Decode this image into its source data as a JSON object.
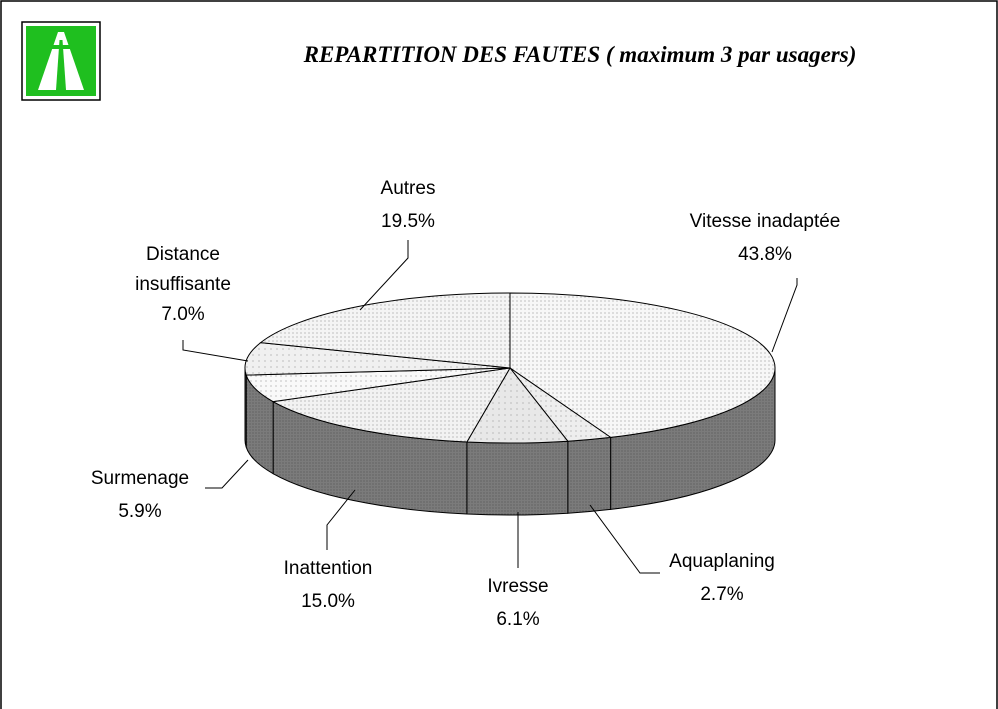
{
  "chart_data": {
    "type": "pie3d",
    "title": "REPARTITION DES FAUTES ( maximum 3 par usagers)",
    "categories": [
      "Vitesse inadaptée",
      "Aquaplaning",
      "Ivresse",
      "Inattention",
      "Surmenage",
      "Distance insuffisante",
      "Autres"
    ],
    "values": [
      43.8,
      2.7,
      6.1,
      15.0,
      5.9,
      7.0,
      19.5
    ],
    "value_labels": [
      "43.8%",
      "2.7%",
      "6.1%",
      "15.0%",
      "5.9%",
      "7.0%",
      "19.5%"
    ],
    "colors": [
      "#f7f7f7",
      "#eeeeee",
      "#e8e8e8",
      "#f2f2f2",
      "#f9f9f9",
      "#f0f0f0",
      "#f4f4f4"
    ],
    "side_color": "#7b7b7b"
  }
}
